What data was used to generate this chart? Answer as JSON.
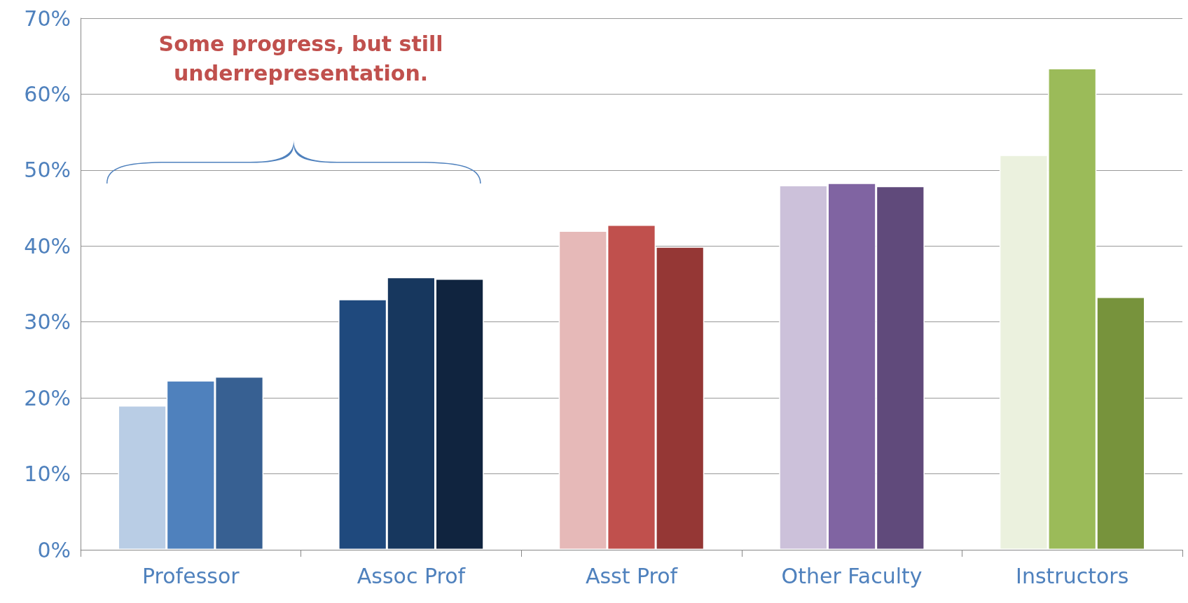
{
  "chart_data": {
    "type": "bar",
    "categories": [
      "Professor",
      "Assoc Prof",
      "Asst Prof",
      "Other Faculty",
      "Instructors"
    ],
    "series": [
      {
        "colors": [
          "#b9cde5",
          "#1f497d",
          "#e6b9b8",
          "#ccc1da",
          "#ebf1de"
        ],
        "values": [
          19,
          33,
          42,
          48,
          52
        ]
      },
      {
        "colors": [
          "#4f81bd",
          "#17375e",
          "#c0504d",
          "#8064a2",
          "#9bbb59"
        ],
        "values": [
          22.3,
          35.9,
          42.8,
          48.3,
          63.4
        ]
      },
      {
        "colors": [
          "#376092",
          "#10243f",
          "#953735",
          "#604a7b",
          "#77933c"
        ],
        "values": [
          22.8,
          35.7,
          39.9,
          47.9,
          33.3
        ]
      }
    ],
    "ylim": [
      0,
      70
    ],
    "yticks": [
      {
        "value": 0,
        "label": "0%"
      },
      {
        "value": 10,
        "label": "10%"
      },
      {
        "value": 20,
        "label": "20%"
      },
      {
        "value": 30,
        "label": "30%"
      },
      {
        "value": 40,
        "label": "40%"
      },
      {
        "value": 50,
        "label": "50%"
      },
      {
        "value": 60,
        "label": "60%"
      },
      {
        "value": 70,
        "label": "70%"
      }
    ],
    "grid": "y",
    "annotations": [
      "Some progress, but still underrepresentation."
    ]
  }
}
